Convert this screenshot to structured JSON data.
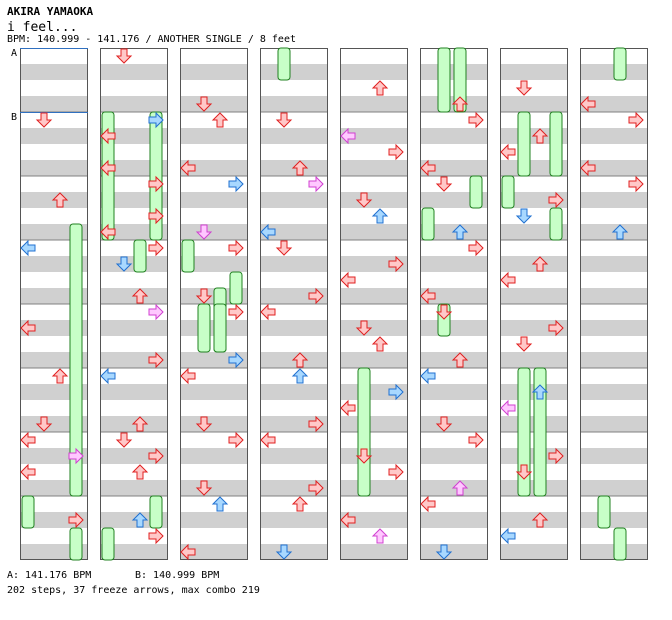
{
  "header": {
    "artist": "AKIRA YAMAOKA",
    "title": "i feel...",
    "meta": "BPM: 140.999 - 141.176 / ANOTHER SINGLE / 8 feet"
  },
  "markers": [
    "A",
    "B"
  ],
  "footer": {
    "bpm_a": "A: 141.176 BPM",
    "bpm_b": "B: 140.999 BPM",
    "stats": "202 steps, 37 freeze arrows, max combo 219"
  },
  "colors": {
    "red_fill": "#ffc8c8",
    "red_stroke": "#e02020",
    "blue_fill": "#a8d8ff",
    "blue_stroke": "#2070d0",
    "pink_fill": "#ffc8ff",
    "pink_stroke": "#d040d0",
    "freeze_fill": "#c8ffc8",
    "freeze_stroke": "#208020",
    "stripe": "#d0d0d0",
    "border": "#000000",
    "marker_line": "#3070c0"
  },
  "notes": [
    [
      1,
      2,
      "down"
    ],
    [
      1,
      4,
      "up"
    ],
    [
      1,
      6,
      "left"
    ],
    [
      1,
      8,
      "left"
    ],
    [
      1,
      10,
      "up"
    ],
    [
      1,
      11,
      "down"
    ],
    [
      1,
      12,
      "left"
    ],
    [
      1,
      12,
      "right"
    ],
    [
      1,
      13,
      "left"
    ],
    [
      1,
      14,
      "right"
    ],
    [
      2,
      0,
      "down"
    ],
    [
      2,
      2,
      "left"
    ],
    [
      2,
      2,
      "right"
    ],
    [
      2,
      3,
      "left"
    ],
    [
      2,
      4,
      "right"
    ],
    [
      2,
      5,
      "left"
    ],
    [
      2,
      5,
      "right"
    ],
    [
      2,
      6,
      "down"
    ],
    [
      2,
      6,
      "right"
    ],
    [
      2,
      7,
      "up"
    ],
    [
      2,
      8,
      "right"
    ],
    [
      2,
      9,
      "right"
    ],
    [
      2,
      10,
      "left"
    ],
    [
      2,
      11,
      "up"
    ],
    [
      2,
      12,
      "down"
    ],
    [
      2,
      12,
      "right"
    ],
    [
      2,
      13,
      "up"
    ],
    [
      2,
      14,
      "up"
    ],
    [
      2,
      15,
      "right"
    ],
    [
      3,
      1,
      "down"
    ],
    [
      3,
      2,
      "up"
    ],
    [
      3,
      3,
      "left"
    ],
    [
      3,
      4,
      "right"
    ],
    [
      3,
      5,
      "down"
    ],
    [
      3,
      6,
      "right"
    ],
    [
      3,
      7,
      "down"
    ],
    [
      3,
      8,
      "right"
    ],
    [
      3,
      9,
      "right"
    ],
    [
      3,
      10,
      "left"
    ],
    [
      3,
      11,
      "down"
    ],
    [
      3,
      12,
      "right"
    ],
    [
      3,
      13,
      "down"
    ],
    [
      3,
      14,
      "up"
    ],
    [
      3,
      15,
      "left"
    ],
    [
      4,
      2,
      "down"
    ],
    [
      4,
      3,
      "up"
    ],
    [
      4,
      4,
      "right"
    ],
    [
      4,
      5,
      "left"
    ],
    [
      4,
      6,
      "down"
    ],
    [
      4,
      7,
      "right"
    ],
    [
      4,
      8,
      "left"
    ],
    [
      4,
      9,
      "up"
    ],
    [
      4,
      10,
      "up"
    ],
    [
      4,
      11,
      "right"
    ],
    [
      4,
      12,
      "left"
    ],
    [
      4,
      13,
      "right"
    ],
    [
      4,
      14,
      "up"
    ],
    [
      4,
      15,
      "down"
    ],
    [
      5,
      1,
      "up"
    ],
    [
      5,
      2,
      "left"
    ],
    [
      5,
      3,
      "right"
    ],
    [
      5,
      4,
      "down"
    ],
    [
      5,
      5,
      "up"
    ],
    [
      5,
      6,
      "right"
    ],
    [
      5,
      7,
      "left"
    ],
    [
      5,
      8,
      "down"
    ],
    [
      5,
      9,
      "up"
    ],
    [
      5,
      10,
      "right"
    ],
    [
      5,
      11,
      "left"
    ],
    [
      5,
      12,
      "down"
    ],
    [
      5,
      13,
      "right"
    ],
    [
      5,
      14,
      "left"
    ],
    [
      5,
      15,
      "up"
    ],
    [
      6,
      1,
      "up"
    ],
    [
      6,
      2,
      "right"
    ],
    [
      6,
      3,
      "left"
    ],
    [
      6,
      4,
      "down"
    ],
    [
      6,
      5,
      "up"
    ],
    [
      6,
      6,
      "right"
    ],
    [
      6,
      7,
      "left"
    ],
    [
      6,
      8,
      "down"
    ],
    [
      6,
      9,
      "up"
    ],
    [
      6,
      10,
      "left"
    ],
    [
      6,
      11,
      "down"
    ],
    [
      6,
      12,
      "right"
    ],
    [
      6,
      13,
      "up"
    ],
    [
      6,
      14,
      "left"
    ],
    [
      6,
      15,
      "down"
    ],
    [
      7,
      1,
      "down"
    ],
    [
      7,
      2,
      "up"
    ],
    [
      7,
      3,
      "left"
    ],
    [
      7,
      4,
      "right"
    ],
    [
      7,
      5,
      "down"
    ],
    [
      7,
      6,
      "up"
    ],
    [
      7,
      7,
      "left"
    ],
    [
      7,
      8,
      "right"
    ],
    [
      7,
      9,
      "down"
    ],
    [
      7,
      10,
      "up"
    ],
    [
      7,
      11,
      "left"
    ],
    [
      7,
      12,
      "right"
    ],
    [
      7,
      13,
      "down"
    ],
    [
      7,
      14,
      "up"
    ],
    [
      7,
      15,
      "left"
    ],
    [
      8,
      1,
      "left"
    ],
    [
      8,
      2,
      "right"
    ],
    [
      8,
      3,
      "left"
    ],
    [
      8,
      4,
      "right"
    ],
    [
      8,
      5,
      "up"
    ]
  ]
}
